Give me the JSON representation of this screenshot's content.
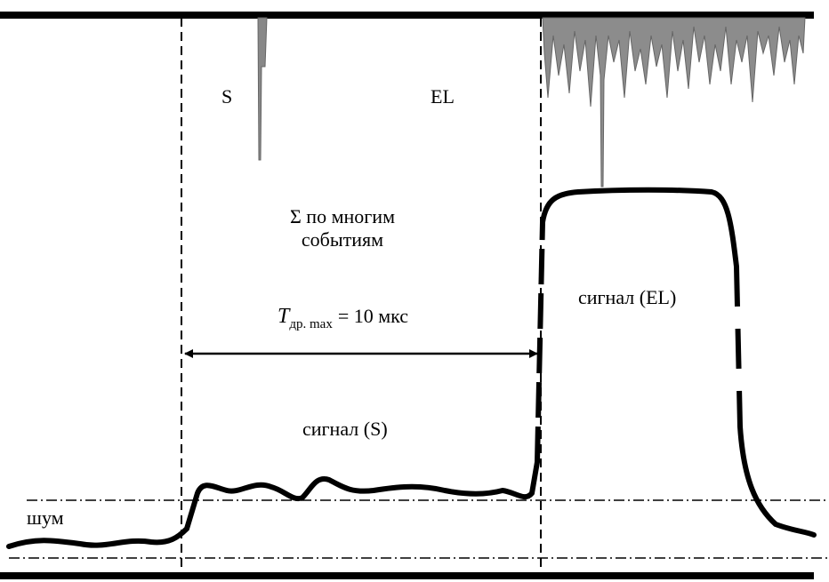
{
  "labels": {
    "s": "S",
    "el": "EL",
    "sum_line1": "Σ по многим",
    "sum_line2": "событиям",
    "drift": {
      "symbol": "T",
      "subscript": "др. max",
      "rest": "= 10 мкс"
    },
    "signal_el": "сигнал (EL)",
    "signal_s": "сигнал (S)",
    "noise": "шум"
  }
}
